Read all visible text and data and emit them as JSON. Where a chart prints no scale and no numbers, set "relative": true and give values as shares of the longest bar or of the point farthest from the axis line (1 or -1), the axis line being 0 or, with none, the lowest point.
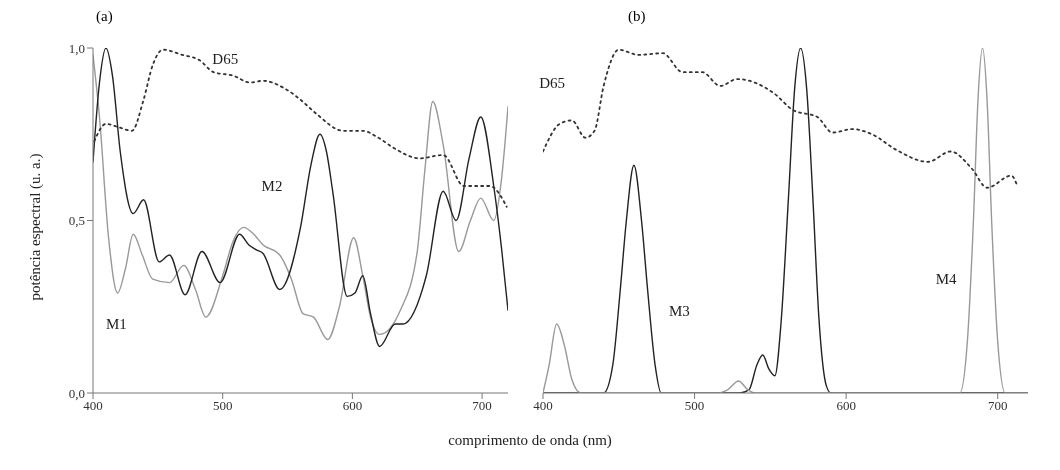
{
  "chart_data": [
    {
      "type": "line",
      "title": "(a)",
      "ylabel": "potência espectral (u. a.)",
      "xlabel": "comprimento de onda (nm)",
      "xlim": [
        400,
        720
      ],
      "xticks": [
        400,
        500,
        600,
        700
      ],
      "ylim": [
        0,
        1.0
      ],
      "yticks": [
        {
          "value": 0,
          "label": "0,0"
        },
        {
          "value": 0.5,
          "label": "0,5"
        },
        {
          "value": 1.0,
          "label": "1,0"
        }
      ],
      "grid": false,
      "legend": false,
      "marker": "none",
      "series": [
        {
          "name": "M1",
          "color": "#999999",
          "line_style": "solid",
          "x": [
            400,
            405,
            412,
            419,
            425,
            431,
            438,
            446,
            459,
            470,
            479,
            487,
            500,
            508,
            516,
            524,
            531,
            544,
            553,
            562,
            570,
            581,
            590,
            601,
            608,
            614,
            621,
            637,
            650,
            656,
            662,
            670,
            682,
            691,
            699,
            709,
            715,
            720
          ],
          "values": [
            0.98,
            0.8,
            0.45,
            0.29,
            0.36,
            0.46,
            0.4,
            0.33,
            0.32,
            0.37,
            0.3,
            0.22,
            0.34,
            0.44,
            0.48,
            0.46,
            0.43,
            0.4,
            0.33,
            0.23,
            0.22,
            0.155,
            0.25,
            0.45,
            0.34,
            0.22,
            0.17,
            0.24,
            0.41,
            0.65,
            0.845,
            0.72,
            0.41,
            0.5,
            0.565,
            0.5,
            0.62,
            0.83
          ]
        },
        {
          "name": "M2",
          "color": "#222222",
          "line_style": "solid",
          "x": [
            400,
            405,
            410,
            415,
            421,
            431,
            439,
            451,
            459,
            471,
            484,
            498,
            513,
            520,
            526,
            531,
            544,
            560,
            568,
            575,
            580,
            585,
            596,
            602,
            608,
            614,
            621,
            633,
            639,
            657,
            670,
            680,
            690,
            699,
            709,
            715,
            720
          ],
          "values": [
            0.67,
            0.9,
            1.0,
            0.92,
            0.7,
            0.52,
            0.56,
            0.38,
            0.4,
            0.285,
            0.41,
            0.32,
            0.46,
            0.43,
            0.415,
            0.405,
            0.3,
            0.48,
            0.66,
            0.75,
            0.7,
            0.58,
            0.28,
            0.29,
            0.34,
            0.23,
            0.135,
            0.2,
            0.2,
            0.34,
            0.585,
            0.5,
            0.68,
            0.8,
            0.6,
            0.42,
            0.24
          ]
        },
        {
          "name": "D65",
          "color": "#333333",
          "line_style": "dotted",
          "x": [
            401,
            410,
            420,
            430,
            439,
            446,
            454,
            469,
            482,
            493,
            508,
            521,
            531,
            549,
            560,
            572,
            593,
            608,
            620,
            632,
            652,
            670,
            686,
            706,
            719
          ],
          "values": [
            0.73,
            0.78,
            0.77,
            0.76,
            0.85,
            0.95,
            0.995,
            0.98,
            0.965,
            0.93,
            0.92,
            0.9,
            0.905,
            0.88,
            0.85,
            0.81,
            0.76,
            0.76,
            0.74,
            0.71,
            0.68,
            0.69,
            0.6,
            0.6,
            0.54
          ]
        }
      ]
    },
    {
      "type": "line",
      "title": "(b)",
      "relative": true,
      "xlim": [
        400,
        720
      ],
      "xticks": [
        400,
        500,
        600,
        700
      ],
      "grid": false,
      "legend": false,
      "marker": "none",
      "series": [
        {
          "name": "M3",
          "color": "#222222",
          "line_style": "solid",
          "x": [
            400,
            440,
            446,
            451,
            455,
            460,
            465,
            469,
            474,
            478,
            530,
            536,
            541,
            545,
            549,
            553,
            557,
            562,
            566,
            570,
            574,
            578,
            582,
            587,
            590,
            720
          ],
          "values": [
            0,
            0,
            0.08,
            0.3,
            0.5,
            0.66,
            0.5,
            0.3,
            0.08,
            0,
            0,
            0.01,
            0.08,
            0.11,
            0.07,
            0.05,
            0.2,
            0.57,
            0.88,
            1.0,
            0.88,
            0.57,
            0.22,
            0.02,
            0,
            0
          ]
        },
        {
          "name": "M4",
          "color": "#999999",
          "line_style": "solid",
          "x": [
            400,
            404,
            409,
            414,
            419,
            425,
            515,
            522,
            529,
            535,
            540,
            675,
            680,
            684,
            687,
            690,
            693,
            696,
            700,
            705,
            720
          ],
          "values": [
            0,
            0.08,
            0.2,
            0.14,
            0.04,
            0,
            0,
            0.01,
            0.035,
            0.01,
            0,
            0,
            0.15,
            0.5,
            0.85,
            1.0,
            0.85,
            0.5,
            0.15,
            0,
            0
          ]
        },
        {
          "name": "D65",
          "color": "#333333",
          "line_style": "dotted",
          "x": [
            400,
            411,
            419,
            428,
            434,
            440,
            450,
            463,
            479,
            492,
            505,
            517,
            528,
            552,
            565,
            581,
            591,
            604,
            617,
            633,
            654,
            669,
            683,
            693,
            709,
            713
          ],
          "values": [
            0.7,
            0.78,
            0.79,
            0.74,
            0.76,
            0.89,
            0.995,
            0.98,
            0.985,
            0.93,
            0.93,
            0.89,
            0.91,
            0.87,
            0.82,
            0.8,
            0.755,
            0.765,
            0.75,
            0.705,
            0.67,
            0.7,
            0.65,
            0.595,
            0.63,
            0.6
          ]
        }
      ]
    }
  ]
}
